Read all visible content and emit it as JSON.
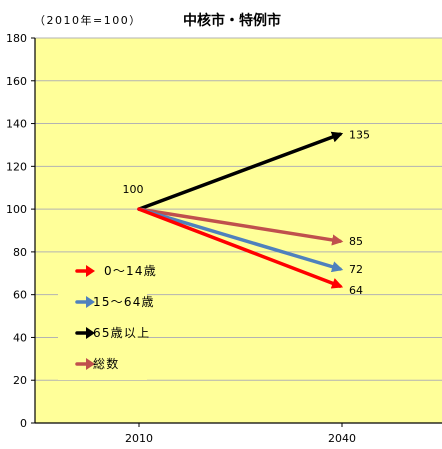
{
  "chart_data": {
    "type": "line",
    "title": "中核市・特例市",
    "subtitle": "（2010年=100）",
    "x": [
      "2010",
      "2040"
    ],
    "ylim": [
      0,
      180
    ],
    "yticks": [
      0,
      20,
      40,
      60,
      80,
      100,
      120,
      140,
      160,
      180
    ],
    "grid": true,
    "legend_position": "lower-left",
    "start_label": "100",
    "series": [
      {
        "name": "0～14歳",
        "values": [
          100,
          64
        ],
        "end_label": "64",
        "color": "#ff0000"
      },
      {
        "name": "15～64歳",
        "values": [
          100,
          72
        ],
        "end_label": "72",
        "color": "#4f81bd"
      },
      {
        "name": "65歳以上",
        "values": [
          100,
          135
        ],
        "end_label": "135",
        "color": "#000000"
      },
      {
        "name": "総数",
        "values": [
          100,
          85
        ],
        "end_label": "85",
        "color": "#c0504d"
      }
    ],
    "colors": {
      "plot_background": "#ffff99",
      "gridline": "#b3b3b3",
      "axis": "#000000"
    }
  }
}
